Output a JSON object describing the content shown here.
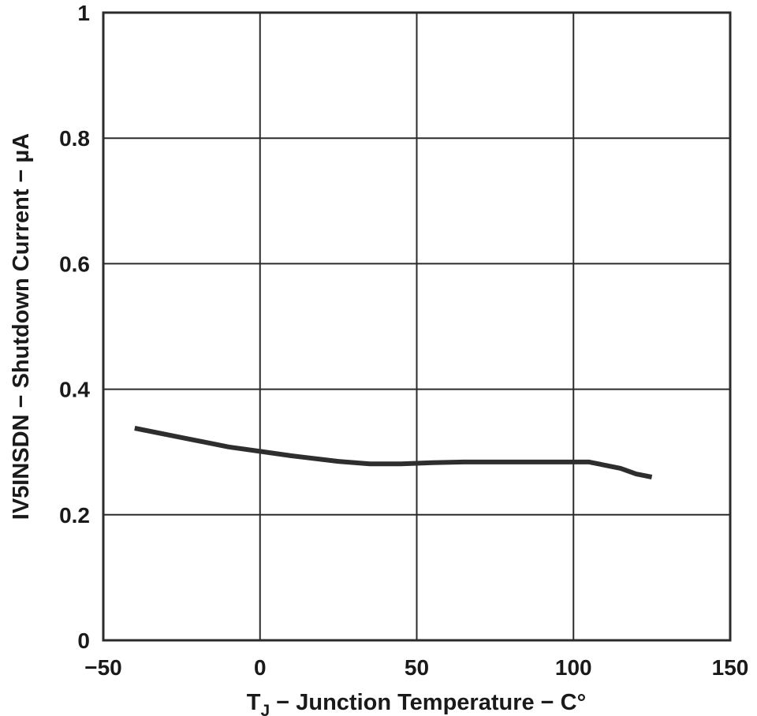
{
  "chart_data": {
    "type": "line",
    "title": "",
    "xlabel": "T",
    "xlabel_sub": "J",
    "xlabel_rest": " − Junction Temperature − C°",
    "ylabel": "IV5INSDN − Shutdown Current − µA",
    "xlim": [
      -50,
      150
    ],
    "ylim": [
      0,
      1
    ],
    "x_ticks": [
      -50,
      0,
      50,
      100,
      150
    ],
    "x_tick_labels": [
      "−50",
      "0",
      "50",
      "100",
      "150"
    ],
    "y_ticks": [
      0,
      0.2,
      0.4,
      0.6,
      0.8,
      1
    ],
    "y_tick_labels": [
      "0",
      "0.2",
      "0.4",
      "0.6",
      "0.8",
      "1"
    ],
    "grid": true,
    "series": [
      {
        "x": [
          -40,
          -25,
          -10,
          0,
          10,
          25,
          35,
          45,
          55,
          65,
          75,
          85,
          95,
          105,
          115,
          120,
          125
        ],
        "y": [
          0.338,
          0.323,
          0.308,
          0.301,
          0.294,
          0.285,
          0.281,
          0.281,
          0.283,
          0.284,
          0.284,
          0.284,
          0.284,
          0.284,
          0.274,
          0.265,
          0.26
        ],
        "color": "#2e2e2e"
      }
    ]
  }
}
